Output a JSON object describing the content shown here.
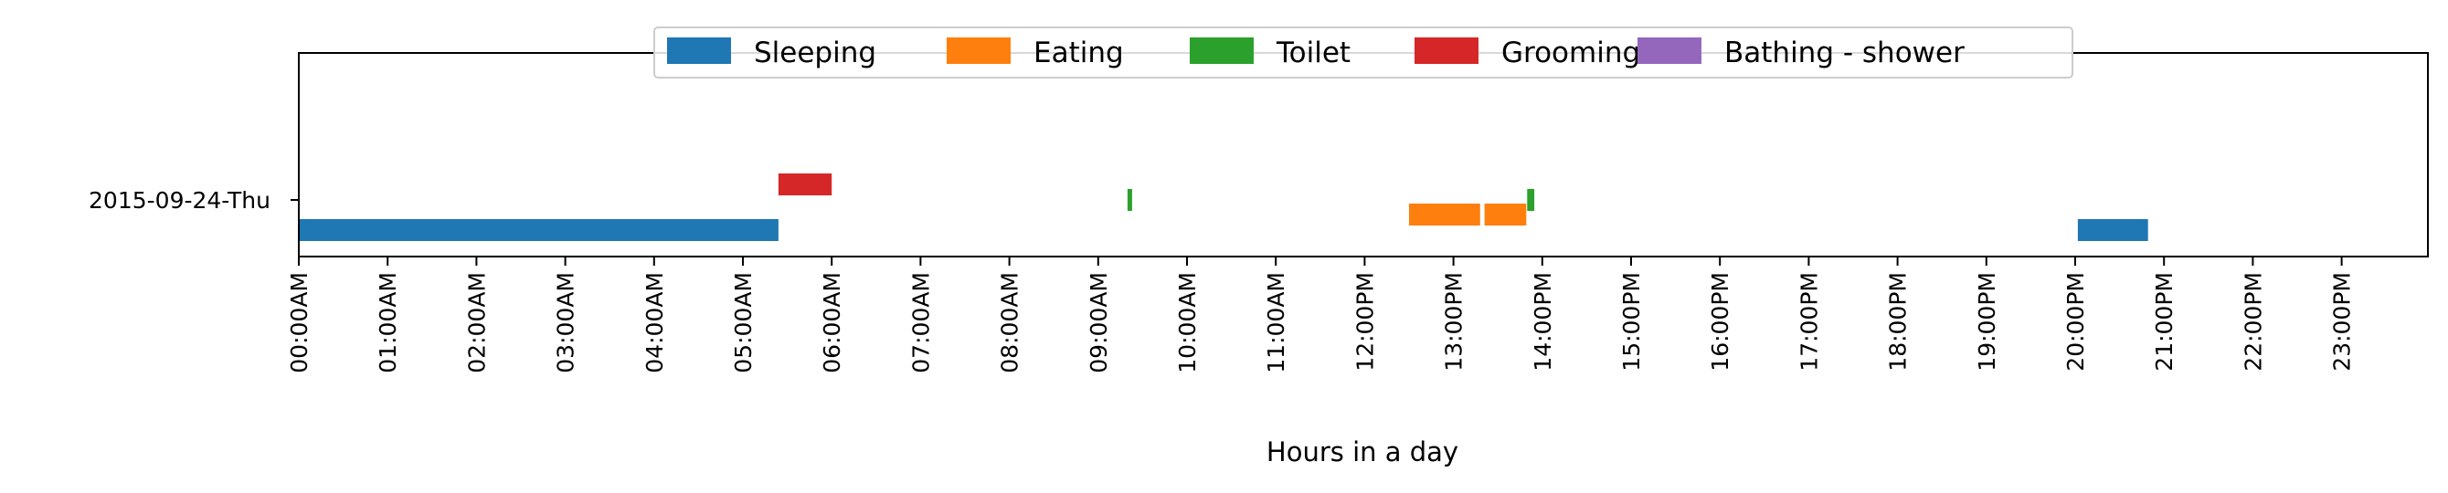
{
  "chart_data": {
    "type": "broken-bar timeline",
    "xlabel": "Hours in a day",
    "ylabel": "",
    "xlim": [
      0,
      24
    ],
    "grid": false,
    "legend_placement": "upper-center",
    "x_ticks": [
      "00:00AM",
      "01:00AM",
      "02:00AM",
      "03:00AM",
      "04:00AM",
      "05:00AM",
      "06:00AM",
      "07:00AM",
      "08:00AM",
      "09:00AM",
      "10:00AM",
      "11:00AM",
      "12:00PM",
      "13:00PM",
      "14:00PM",
      "15:00PM",
      "16:00PM",
      "17:00PM",
      "18:00PM",
      "19:00PM",
      "20:00PM",
      "21:00PM",
      "22:00PM",
      "23:00PM"
    ],
    "rows": [
      "2015-09-24-Thu"
    ],
    "series": [
      {
        "name": "Sleeping",
        "color": "#1f77b4",
        "intervals": [
          [
            0.0,
            5.4
          ],
          [
            20.03,
            20.82
          ]
        ]
      },
      {
        "name": "Eating",
        "color": "#ff7f0e",
        "intervals": [
          [
            12.5,
            13.3
          ],
          [
            13.35,
            13.82
          ]
        ]
      },
      {
        "name": "Toilet",
        "color": "#2ca02c",
        "intervals": [
          [
            9.33,
            9.38
          ],
          [
            13.83,
            13.91
          ]
        ]
      },
      {
        "name": "Grooming",
        "color": "#d62728",
        "intervals": [
          [
            5.4,
            6.0
          ]
        ]
      },
      {
        "name": "Bathing - shower",
        "color": "#9467bd",
        "intervals": []
      }
    ]
  }
}
